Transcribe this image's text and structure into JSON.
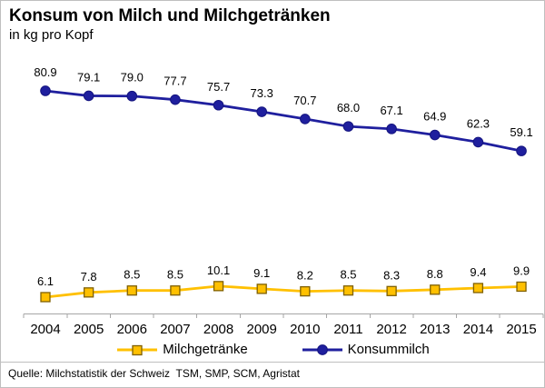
{
  "header": {
    "title": "Konsum von Milch und Milchgetränken",
    "subtitle": "in kg pro Kopf"
  },
  "source": "Quelle: Milchstatistik der Schweiz  TSM, SMP, SCM, Agristat",
  "colors": {
    "milchgetraenke_line": "#FFC000",
    "milchgetraenke_marker_fill": "#FFC000",
    "milchgetraenke_marker_border": "#7F6000",
    "konsummilch_line": "#1F1F9E",
    "konsummilch_marker_border": "#14147F",
    "axis": "#A6A6A6",
    "label_text": "#000000",
    "frame_border": "#BFBFBF"
  },
  "chart_data": {
    "type": "line",
    "title": "Konsum von Milch und Milchgetränken",
    "subtitle": "in kg pro Kopf",
    "xlabel": "",
    "ylabel": "kg pro Kopf",
    "categories": [
      "2004",
      "2005",
      "2006",
      "2007",
      "2008",
      "2009",
      "2010",
      "2011",
      "2012",
      "2013",
      "2014",
      "2015"
    ],
    "series": [
      {
        "name": "Milchgetränke",
        "marker": "square",
        "color": "#FFC000",
        "marker_fill": "#FFC000",
        "marker_border": "#7F6000",
        "label_offset": 13,
        "values": [
          6.1,
          7.8,
          8.5,
          8.5,
          10.1,
          9.1,
          8.2,
          8.5,
          8.3,
          8.8,
          9.4,
          9.9
        ]
      },
      {
        "name": "Konsummilch",
        "marker": "circle",
        "color": "#1F1F9E",
        "marker_fill": "#1F1F9E",
        "marker_border": "#14147F",
        "label_offset": 16,
        "values": [
          80.9,
          79.1,
          79.0,
          77.7,
          75.7,
          73.3,
          70.7,
          68.0,
          67.1,
          64.9,
          62.3,
          59.1
        ]
      }
    ],
    "ylim": [
      0,
      95
    ],
    "grid": false,
    "data_labels": true,
    "legend_position": "bottom",
    "x_axis": {
      "tick_style": "between-categories",
      "line_visible": true
    }
  }
}
